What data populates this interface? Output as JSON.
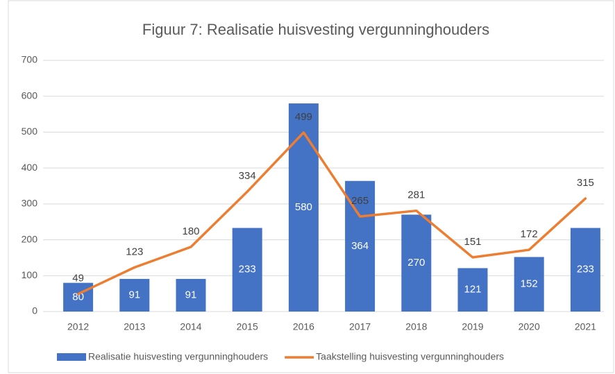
{
  "chart_data": {
    "type": "combo",
    "title": "Figuur 7: Realisatie huisvesting vergunninghouders",
    "categories": [
      "2012",
      "2013",
      "2014",
      "2015",
      "2016",
      "2017",
      "2018",
      "2019",
      "2020",
      "2021"
    ],
    "series": [
      {
        "name": "Realisatie huisvesting vergunninghouders",
        "type": "bar",
        "color": "#4472c4",
        "values": [
          80,
          91,
          91,
          233,
          580,
          364,
          270,
          121,
          152,
          233
        ]
      },
      {
        "name": "Taakstelling huisvesting vergunninghouders",
        "type": "line",
        "color": "#ed7d31",
        "values": [
          49,
          123,
          180,
          334,
          499,
          265,
          281,
          151,
          172,
          315
        ]
      }
    ],
    "ylim": [
      0,
      700
    ],
    "yticks": [
      0,
      100,
      200,
      300,
      400,
      500,
      600,
      700
    ],
    "grid": true
  }
}
